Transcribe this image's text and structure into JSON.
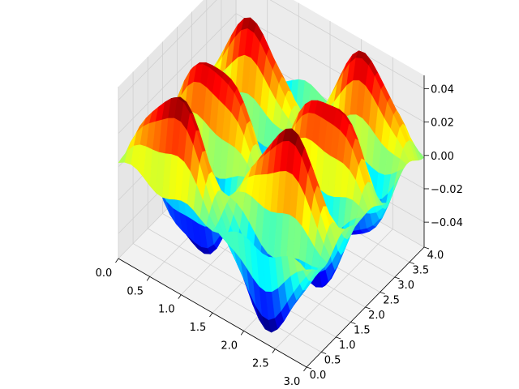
{
  "chart_data": {
    "type": "surface3d",
    "title": "",
    "xlabel": "",
    "ylabel": "",
    "zlabel": "",
    "xlim": [
      0,
      3
    ],
    "ylim": [
      0,
      4
    ],
    "zlim": [
      -0.055,
      0.048
    ],
    "xticks": [
      "0.0",
      "0.5",
      "1.0",
      "1.5",
      "2.0",
      "2.5",
      "3.0"
    ],
    "yticks": [
      "0.0",
      "0.5",
      "1.0",
      "1.5",
      "2.0",
      "2.5",
      "3.0",
      "3.5",
      "4.0"
    ],
    "zticks": [
      "−0.04",
      "−0.02",
      "0.00",
      "0.02",
      "0.04"
    ],
    "colormap": "jet",
    "grid": true,
    "pane_color": "#f2f2f2",
    "surface_description": "z ≈ 0.05 · sin(2πx/3) · sin(1.5πy) plus small noise"
  }
}
